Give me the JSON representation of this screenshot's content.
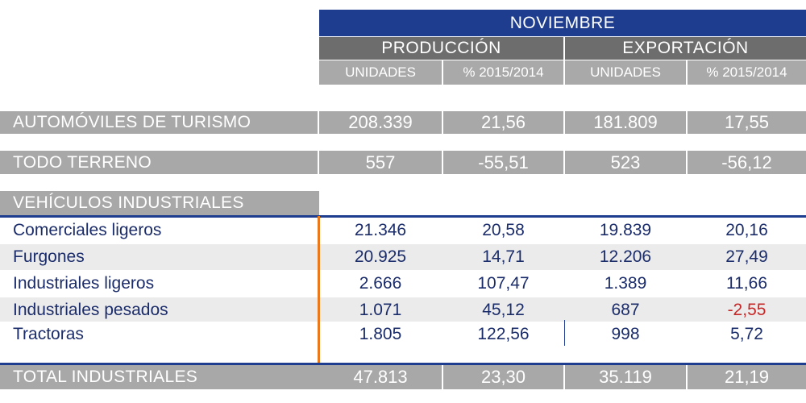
{
  "header": {
    "month": "NOVIEMBRE",
    "production": "PRODUCCIÓN",
    "export": "EXPORTACIÓN",
    "units": "UNIDADES",
    "pct": "% 2015/2014"
  },
  "summary_rows": [
    {
      "label": "AUTOMÓVILES DE TURISMO",
      "prod_units": "208.339",
      "prod_pct": "21,56",
      "exp_units": "181.809",
      "exp_pct": "17,55"
    },
    {
      "label": "TODO TERRENO",
      "prod_units": "557",
      "prod_pct": "-55,51",
      "exp_units": "523",
      "exp_pct": "-56,12"
    }
  ],
  "section_label": "VEHÍCULOS INDUSTRIALES",
  "rows": [
    {
      "label": "Comerciales ligeros",
      "prod_units": "21.346",
      "prod_pct": "20,58",
      "exp_units": "19.839",
      "exp_pct": "20,16"
    },
    {
      "label": "Furgones",
      "prod_units": "20.925",
      "prod_pct": "14,71",
      "exp_units": "12.206",
      "exp_pct": "27,49"
    },
    {
      "label": "Industriales ligeros",
      "prod_units": "2.666",
      "prod_pct": "107,47",
      "exp_units": "1.389",
      "exp_pct": "11,66"
    },
    {
      "label": "Industriales pesados",
      "prod_units": "1.071",
      "prod_pct": "45,12",
      "exp_units": "687",
      "exp_pct": "-2,55"
    },
    {
      "label": "Tractoras",
      "prod_units": "1.805",
      "prod_pct": "122,56",
      "exp_units": "998",
      "exp_pct": "5,72"
    }
  ],
  "total": {
    "label": "TOTAL INDUSTRIALES",
    "prod_units": "47.813",
    "prod_pct": "23,30",
    "exp_units": "35.119",
    "exp_pct": "21,19"
  },
  "colors": {
    "navy": "#1f3d8f",
    "orange": "#e8791c",
    "negative": "#c62828",
    "gray": "#a8a8a8"
  }
}
